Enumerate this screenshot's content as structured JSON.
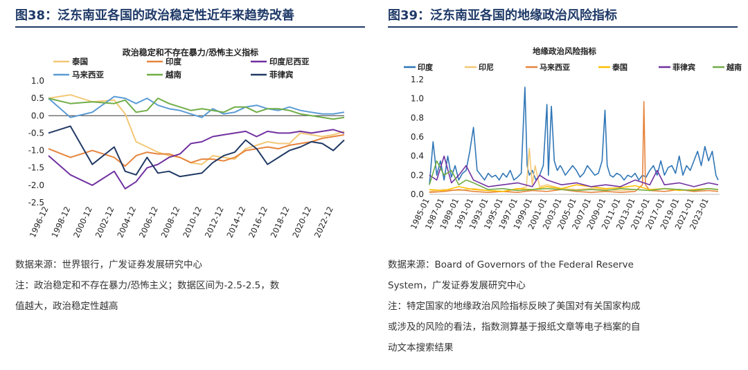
{
  "left": {
    "figure_title": "图38：泛东南亚各国的政治稳定性近年来趋势改善",
    "source": "数据来源：世界银行，广发证券发展研究中心",
    "note_line1": "注：政治稳定和不存在暴力/恐怖主义；数据区间为-2.5-2.5，数",
    "note_line2": "值越大，政治稳定性越高"
  },
  "right": {
    "figure_title": "图39：泛东南亚各国的地缘政治风险指标",
    "source_line1": "数据来源：Board of Governors of the Federal Reserve",
    "source_line2": "System，广发证券发展研究中心",
    "note_line1": "注：特定国家的地缘政治风险指标反映了美国对有关国家构成",
    "note_line2": "或涉及的风险的看法，指数测算基于报纸文章等电子档案的自",
    "note_line3": "动文本搜索结果"
  },
  "chart_data": [
    {
      "type": "line",
      "title": "政治稳定和不存在暴力/恐怖主义指标",
      "x": [
        1996,
        1998,
        2000,
        2002,
        2003,
        2004,
        2005,
        2006,
        2007,
        2008,
        2009,
        2010,
        2011,
        2012,
        2013,
        2014,
        2015,
        2016,
        2017,
        2018,
        2019,
        2020,
        2021,
        2022,
        2023
      ],
      "x_tick_labels": [
        "1996-12",
        "1998-12",
        "2000-12",
        "2002-12",
        "2004-12",
        "2006-12",
        "2008-12",
        "2010-12",
        "2012-12",
        "2014-12",
        "2016-12",
        "2018-12",
        "2020-12",
        "2022-12"
      ],
      "ylim": [
        -2.5,
        1.0
      ],
      "y_ticks": [
        1.0,
        0.5,
        0.0,
        -0.5,
        -1.0,
        -1.5,
        -2.0,
        -2.5
      ],
      "y_tick_labels": [
        "1.0",
        "0.5",
        "0.0",
        "-0.5",
        "-1.0",
        "-1.5",
        "-2.0",
        "-2.5"
      ],
      "legend_position": "top",
      "series": [
        {
          "name": "泰国",
          "color": "#f2c874",
          "values": [
            0.5,
            0.6,
            0.4,
            0.45,
            0.05,
            -0.75,
            -0.9,
            -1.05,
            -1.15,
            -1.2,
            -1.35,
            -1.4,
            -1.15,
            -1.2,
            -1.25,
            -0.95,
            -0.85,
            -0.75,
            -0.8,
            -0.8,
            -0.5,
            -0.55,
            -0.6,
            -0.55,
            -0.45
          ]
        },
        {
          "name": "马来西亚",
          "color": "#5b9bd5",
          "values": [
            0.5,
            -0.05,
            0.1,
            0.55,
            0.5,
            0.35,
            0.5,
            0.3,
            0.2,
            0.15,
            0.05,
            -0.05,
            0.2,
            0.05,
            0.1,
            0.25,
            0.3,
            0.2,
            0.15,
            0.25,
            0.15,
            0.1,
            0.05,
            0.05,
            0.1
          ]
        },
        {
          "name": "印度",
          "color": "#e6843c",
          "values": [
            -0.95,
            -1.2,
            -1.0,
            -1.2,
            -1.45,
            -1.15,
            -1.05,
            -1.1,
            -1.1,
            -1.2,
            -1.35,
            -1.25,
            -1.25,
            -1.3,
            -1.2,
            -1.0,
            -0.95,
            -0.9,
            -0.95,
            -0.85,
            -0.8,
            -0.75,
            -0.65,
            -0.6,
            -0.55
          ]
        },
        {
          "name": "越南",
          "color": "#70ad47",
          "values": [
            0.5,
            0.35,
            0.4,
            0.35,
            0.45,
            0.1,
            0.15,
            0.5,
            0.35,
            0.25,
            0.15,
            0.2,
            0.15,
            0.1,
            0.25,
            0.25,
            0.1,
            0.2,
            0.2,
            0.15,
            0.05,
            0.0,
            -0.05,
            -0.1,
            -0.05
          ]
        },
        {
          "name": "印度尼西亚",
          "color": "#7030a0",
          "values": [
            -1.15,
            -1.7,
            -2.0,
            -1.6,
            -2.1,
            -1.9,
            -1.5,
            -1.4,
            -1.2,
            -1.1,
            -0.8,
            -0.75,
            -0.6,
            -0.55,
            -0.5,
            -0.45,
            -0.6,
            -0.45,
            -0.5,
            -0.5,
            -0.45,
            -0.5,
            -0.45,
            -0.4,
            -0.5
          ]
        },
        {
          "name": "菲律宾",
          "color": "#203864",
          "values": [
            -0.5,
            -0.3,
            -1.4,
            -0.9,
            -1.6,
            -1.7,
            -1.2,
            -1.65,
            -1.6,
            -1.75,
            -1.7,
            -1.65,
            -1.35,
            -1.15,
            -1.05,
            -0.7,
            -0.95,
            -1.4,
            -1.2,
            -1.0,
            -0.9,
            -0.75,
            -0.8,
            -1.0,
            -0.7
          ]
        }
      ]
    },
    {
      "type": "line",
      "title": "地缘政治风险指标",
      "xlim": [
        1985.0,
        2024.5
      ],
      "x_tick_labels": [
        "1985-01",
        "1987-01",
        "1989-01",
        "1991-01",
        "1993-01",
        "1995-01",
        "1997-01",
        "1999-01",
        "2001-01",
        "2003-01",
        "2005-01",
        "2007-01",
        "2009-01",
        "2011-01",
        "2013-01",
        "2015-01",
        "2017-01",
        "2019-01",
        "2021-01",
        "2023-01"
      ],
      "ylim": [
        0.0,
        1.2
      ],
      "y_ticks": [
        0.0,
        0.2,
        0.4,
        0.6,
        0.8,
        1.0,
        1.2
      ],
      "y_tick_labels": [
        "0.0",
        "0.2",
        "0.4",
        "0.6",
        "0.8",
        "1.0",
        "1.2"
      ],
      "legend_position": "top",
      "series": [
        {
          "name": "印度",
          "color": "#2e75b6",
          "x": [
            1985,
            1985.5,
            1986,
            1986.5,
            1987,
            1987.5,
            1988,
            1988.5,
            1989,
            1989.5,
            1990,
            1990.5,
            1991,
            1991.5,
            1992,
            1992.5,
            1993,
            1993.5,
            1994,
            1994.5,
            1995,
            1995.5,
            1996,
            1996.5,
            1997,
            1997.5,
            1998,
            1998.3,
            1998.6,
            1999,
            1999.5,
            2000,
            2000.5,
            2001,
            2001.2,
            2001.6,
            2002,
            2002.4,
            2002.8,
            2003,
            2003.5,
            2004,
            2004.5,
            2005,
            2005.5,
            2006,
            2006.5,
            2007,
            2007.5,
            2008,
            2008.5,
            2008.9,
            2009.2,
            2009.6,
            2010,
            2010.5,
            2011,
            2011.5,
            2012,
            2012.5,
            2013,
            2013.5,
            2014,
            2014.5,
            2015,
            2015.5,
            2016,
            2016.5,
            2017,
            2017.5,
            2018,
            2018.5,
            2019,
            2019.5,
            2020,
            2020.5,
            2021,
            2021.5,
            2022,
            2022.5,
            2023,
            2023.5,
            2024,
            2024.3
          ],
          "values": [
            0.1,
            0.55,
            0.2,
            0.35,
            0.15,
            0.4,
            0.18,
            0.3,
            0.15,
            0.22,
            0.25,
            0.45,
            0.7,
            0.25,
            0.2,
            0.15,
            0.22,
            0.18,
            0.2,
            0.15,
            0.22,
            0.18,
            0.25,
            0.15,
            0.18,
            0.22,
            1.12,
            0.3,
            0.2,
            0.25,
            0.15,
            0.2,
            0.3,
            0.94,
            0.2,
            0.92,
            0.35,
            0.25,
            0.3,
            0.28,
            0.2,
            0.25,
            0.3,
            0.25,
            0.18,
            0.22,
            0.3,
            0.25,
            0.2,
            0.22,
            0.35,
            0.88,
            0.3,
            0.2,
            0.18,
            0.22,
            0.2,
            0.15,
            0.2,
            0.18,
            0.22,
            0.15,
            0.2,
            0.18,
            0.25,
            0.3,
            0.2,
            0.35,
            0.2,
            0.28,
            0.3,
            0.22,
            0.4,
            0.2,
            0.3,
            0.25,
            0.35,
            0.45,
            0.3,
            0.5,
            0.35,
            0.45,
            0.2,
            0.15
          ]
        },
        {
          "name": "印尼",
          "color": "#f2c874",
          "x": [
            1985,
            1987,
            1989,
            1991,
            1993,
            1995,
            1997,
            1998.2,
            1998.6,
            1999,
            1999.4,
            2000,
            2001,
            2003,
            2005,
            2007,
            2009,
            2011,
            2013,
            2015,
            2017,
            2019,
            2021,
            2023,
            2024.3
          ],
          "values": [
            0.03,
            0.05,
            0.04,
            0.06,
            0.04,
            0.03,
            0.05,
            0.08,
            0.48,
            0.1,
            0.3,
            0.08,
            0.1,
            0.06,
            0.05,
            0.06,
            0.05,
            0.04,
            0.05,
            0.04,
            0.06,
            0.05,
            0.04,
            0.06,
            0.05
          ]
        },
        {
          "name": "马来西亚",
          "color": "#e6843c",
          "x": [
            1985,
            1987,
            1989,
            1991,
            1993,
            1995,
            1997,
            1999,
            2001,
            2003,
            2005,
            2007,
            2009,
            2011,
            2013,
            2014.0,
            2014.2,
            2014.4,
            2015,
            2017,
            2019,
            2021,
            2023,
            2024.3
          ],
          "values": [
            0.02,
            0.03,
            0.05,
            0.03,
            0.02,
            0.03,
            0.02,
            0.04,
            0.03,
            0.05,
            0.03,
            0.02,
            0.03,
            0.02,
            0.03,
            0.1,
            0.97,
            0.1,
            0.04,
            0.03,
            0.05,
            0.03,
            0.04,
            0.03
          ]
        },
        {
          "name": "泰国",
          "color": "#ffc000",
          "x": [
            1985,
            1987,
            1989,
            1991,
            1993,
            1995,
            1997,
            1999,
            2001,
            2003,
            2005,
            2007,
            2009,
            2011,
            2013,
            2015,
            2017,
            2019,
            2021,
            2023,
            2024.3
          ],
          "values": [
            0.05,
            0.04,
            0.08,
            0.05,
            0.04,
            0.03,
            0.06,
            0.05,
            0.08,
            0.06,
            0.1,
            0.08,
            0.06,
            0.07,
            0.09,
            0.05,
            0.06,
            0.04,
            0.05,
            0.06,
            0.05
          ]
        },
        {
          "name": "菲律宾",
          "color": "#7030a0",
          "x": [
            1985,
            1986,
            1987,
            1988,
            1989,
            1990,
            1991,
            1993,
            1995,
            1997,
            1999,
            2000,
            2001,
            2003,
            2005,
            2007,
            2009,
            2011,
            2013,
            2015,
            2016,
            2017,
            2019,
            2021,
            2023,
            2024.3
          ],
          "values": [
            0.2,
            0.15,
            0.4,
            0.12,
            0.2,
            0.3,
            0.15,
            0.08,
            0.1,
            0.12,
            0.08,
            0.2,
            0.15,
            0.1,
            0.12,
            0.08,
            0.1,
            0.08,
            0.15,
            0.1,
            0.25,
            0.1,
            0.12,
            0.08,
            0.12,
            0.1
          ]
        },
        {
          "name": "越南",
          "color": "#70ad47",
          "x": [
            1985,
            1986,
            1987,
            1988,
            1989,
            1990,
            1991,
            1993,
            1995,
            1997,
            1999,
            2001,
            2003,
            2005,
            2007,
            2009,
            2011,
            2013,
            2015,
            2017,
            2019,
            2021,
            2023,
            2024.3
          ],
          "values": [
            0.1,
            0.35,
            0.2,
            0.25,
            0.1,
            0.15,
            0.12,
            0.05,
            0.06,
            0.04,
            0.05,
            0.06,
            0.05,
            0.04,
            0.05,
            0.04,
            0.06,
            0.05,
            0.04,
            0.06,
            0.05,
            0.04,
            0.06,
            0.05
          ]
        }
      ]
    }
  ]
}
